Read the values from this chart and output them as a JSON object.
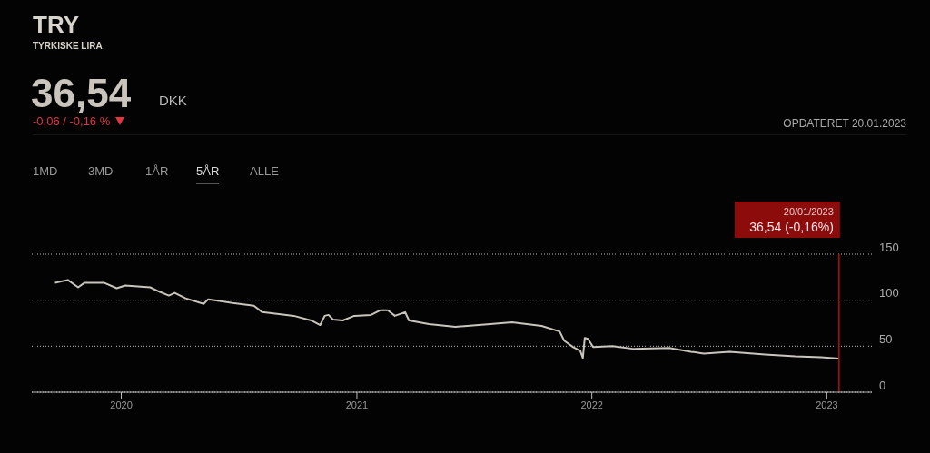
{
  "chart_data": {
    "type": "line",
    "title": "TRY",
    "subtitle": "TYRKISKE LIRA",
    "annotations": [
      "36,54",
      "DKK",
      "-0,06 / -0,16 %",
      "OPDATERET 20.01.2023",
      "1MD",
      "3MD",
      "1ÅR",
      "5ÅR",
      "ALLE"
    ],
    "x": [
      "2019-09-20",
      "2019-10-10",
      "2019-10-26",
      "2019-11-05",
      "2019-12-05",
      "2019-12-25",
      "2020-01-07",
      "2020-02-15",
      "2020-03-01",
      "2020-03-15",
      "2020-03-24",
      "2020-04-10",
      "2020-05-08",
      "2020-05-15",
      "2020-05-25",
      "2020-06-22",
      "2020-07-25",
      "2020-08-07",
      "2020-08-30",
      "2020-09-25",
      "2020-10-22",
      "2020-11-05",
      "2020-11-12",
      "2020-11-18",
      "2020-11-25",
      "2020-12-10",
      "2020-12-28",
      "2021-01-23",
      "2021-02-06",
      "2021-02-18",
      "2021-03-01",
      "2021-03-17",
      "2021-03-23",
      "2021-04-23",
      "2021-06-03",
      "2021-07-27",
      "2021-08-30",
      "2021-10-15",
      "2021-11-12",
      "2021-11-19",
      "2021-12-03",
      "2021-12-14",
      "2021-12-18",
      "2021-12-21",
      "2021-12-26",
      "2022-01-03",
      "2022-02-02",
      "2022-03-08",
      "2022-05-01",
      "2022-06-04",
      "2022-06-24",
      "2022-08-03",
      "2022-09-27",
      "2022-11-13",
      "2022-12-23",
      "2023-01-20"
    ],
    "series": [
      {
        "color": "#c9c5bd",
        "values": [
          119,
          122,
          114,
          119,
          119,
          113,
          116,
          114,
          109,
          105,
          108,
          102,
          96,
          101,
          100,
          97,
          94,
          87,
          85,
          83,
          78,
          73,
          83,
          84,
          79,
          78,
          83,
          84,
          89,
          89,
          83,
          87,
          78,
          74,
          71,
          74,
          76,
          72,
          66,
          56,
          49,
          45,
          37,
          59,
          58,
          49,
          50,
          47,
          48,
          44,
          42,
          44,
          41,
          39,
          38,
          36.54
        ]
      }
    ],
    "xlim": [
      "2019-08-15",
      "2023-03-12"
    ],
    "xticks": [
      {
        "value": "2020-01-01",
        "label": "2020"
      },
      {
        "value": "2021-01-01",
        "label": "2021"
      },
      {
        "value": "2022-01-01",
        "label": "2022"
      },
      {
        "value": "2023-01-01",
        "label": "2023"
      }
    ],
    "ylim": [
      0,
      150
    ],
    "yticks": [
      0,
      50,
      100,
      150
    ],
    "grid": "y",
    "legend": false,
    "marker": "none",
    "line_style": "solid",
    "ref_lines": [
      {
        "axis": "x",
        "value": "2023-01-20",
        "label": "20/01/2023\n36,54 (-0,16%)",
        "color": "#b01010"
      }
    ]
  }
}
